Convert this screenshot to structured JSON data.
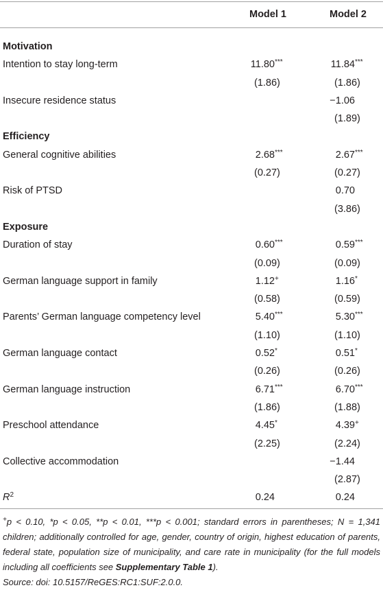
{
  "table": {
    "header": [
      "Model 1",
      "Model 2"
    ],
    "rows": [
      {
        "section": "Motivation"
      },
      {
        "label": "Intention to stay long-term",
        "model_1": {
          "value": "11.80",
          "sig": "***"
        },
        "model_2": {
          "value": "11.84",
          "sig": "***"
        }
      },
      {
        "model_1": {
          "se": "(1.86)"
        },
        "model_2": {
          "se": "(1.86)"
        }
      },
      {
        "label": "Insecure residence status",
        "model_2": {
          "value": "−1.06"
        }
      },
      {
        "model_2": {
          "se": "(1.89)"
        }
      },
      {
        "section": "Efficiency"
      },
      {
        "label": "General cognitive abilities",
        "model_1": {
          "value": "2.68",
          "sig": "***"
        },
        "model_2": {
          "value": "2.67",
          "sig": "***"
        }
      },
      {
        "model_1": {
          "se": "(0.27)"
        },
        "model_2": {
          "se": "(0.27)"
        }
      },
      {
        "label": "Risk of PTSD",
        "model_2": {
          "value": "0.70"
        }
      },
      {
        "model_2": {
          "se": "(3.86)"
        }
      },
      {
        "section": "Exposure"
      },
      {
        "label": "Duration of stay",
        "model_1": {
          "value": "0.60",
          "sig": "***"
        },
        "model_2": {
          "value": "0.59",
          "sig": "***"
        }
      },
      {
        "model_1": {
          "se": "(0.09)"
        },
        "model_2": {
          "se": "(0.09)"
        }
      },
      {
        "label": "German language support in family",
        "model_1": {
          "value": "1.12",
          "sig": "+"
        },
        "model_2": {
          "value": "1.16",
          "sig": "*"
        }
      },
      {
        "model_1": {
          "se": "(0.58)"
        },
        "model_2": {
          "se": "(0.59)"
        }
      },
      {
        "label": "Parents’ German language competency level",
        "model_1": {
          "value": "5.40",
          "sig": "***"
        },
        "model_2": {
          "value": "5.30",
          "sig": "***"
        }
      },
      {
        "model_1": {
          "se": "(1.10)"
        },
        "model_2": {
          "se": "(1.10)"
        }
      },
      {
        "label": "German language contact",
        "model_1": {
          "value": "0.52",
          "sig": "*"
        },
        "model_2": {
          "value": "0.51",
          "sig": "*"
        }
      },
      {
        "model_1": {
          "se": "(0.26)"
        },
        "model_2": {
          "se": "(0.26)"
        }
      },
      {
        "label": "German language instruction",
        "model_1": {
          "value": "6.71",
          "sig": "***"
        },
        "model_2": {
          "value": "6.70",
          "sig": "***"
        }
      },
      {
        "model_1": {
          "se": "(1.86)"
        },
        "model_2": {
          "se": "(1.88)"
        }
      },
      {
        "label": "Preschool attendance",
        "model_1": {
          "value": "4.45",
          "sig": "*"
        },
        "model_2": {
          "value": "4.39",
          "sig": "+"
        }
      },
      {
        "model_1": {
          "se": "(2.25)"
        },
        "model_2": {
          "se": "(2.24)"
        }
      },
      {
        "label": "Collective accommodation",
        "model_2": {
          "value": "−1.44"
        }
      },
      {
        "model_2": {
          "se": "(2.87)"
        }
      },
      {
        "label": "R",
        "label_sup": "2",
        "model_1": {
          "value": "0.24"
        },
        "model_2": {
          "value": "0.24"
        }
      }
    ],
    "footnote": [
      {
        "text": "+",
        "sup": true
      },
      {
        "text": "p < 0.10, *p < 0.05, **p < 0.01, ***p < 0.001; standard errors in parentheses; N = 1,341 children; additionally controlled for age, gender, country of origin, highest education of parents, federal state, population size of municipality, and care rate in municipality (for the full models including all coefficients see "
      },
      {
        "text": "Supplementary Table 1",
        "bold": true
      },
      {
        "text": ")."
      }
    ],
    "source": "Source: doi: 10.5157/ReGES:RC1:SUF:2.0.0."
  }
}
